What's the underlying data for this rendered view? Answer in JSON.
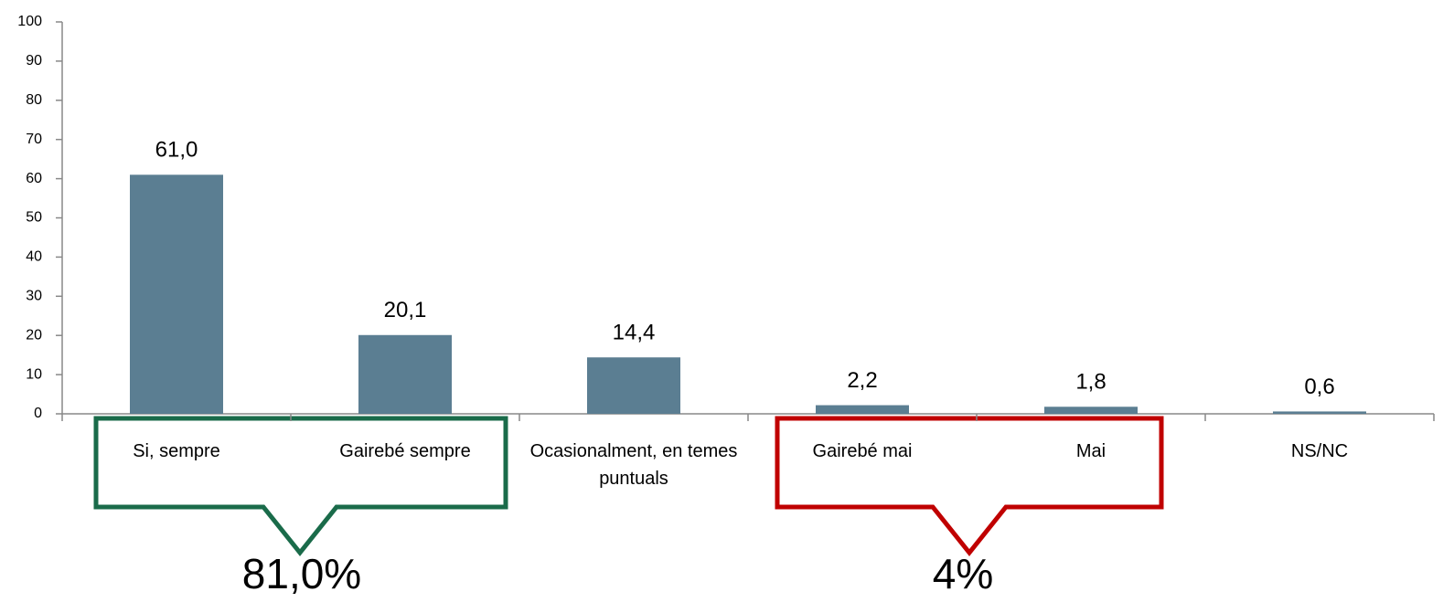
{
  "chart_data": {
    "type": "bar",
    "categories": [
      "Si, sempre",
      "Gairebé sempre",
      "Ocasionalment, en temes puntuals",
      "Gairebé mai",
      "Mai",
      "NS/NC"
    ],
    "values": [
      61.0,
      20.1,
      14.4,
      2.2,
      1.8,
      0.6
    ],
    "value_labels": [
      "61,0",
      "20,1",
      "14,4",
      "2,2",
      "1,8",
      "0,6"
    ],
    "color": "#5b7e92",
    "ylim": [
      0,
      100
    ],
    "yticks": [
      0,
      10,
      20,
      30,
      40,
      50,
      60,
      70,
      80,
      90,
      100
    ],
    "annotations": [
      {
        "text": "81,0%",
        "color": "#1a6b4a"
      },
      {
        "text": "4%",
        "color": "#c00000"
      }
    ]
  }
}
